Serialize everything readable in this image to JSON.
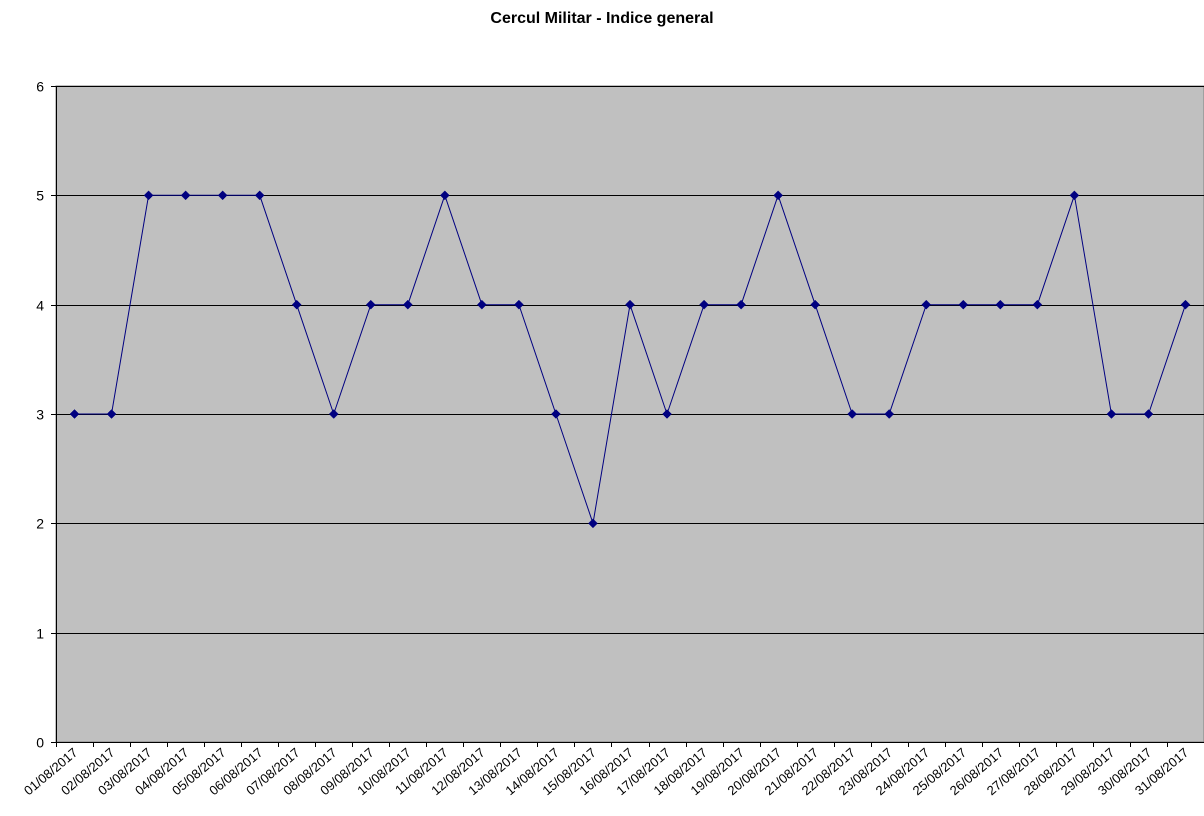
{
  "chart_data": {
    "type": "line",
    "title": "Cercul Militar - Indice general",
    "xlabel": "",
    "ylabel": "",
    "ylim": [
      0,
      6
    ],
    "yticks": [
      0,
      1,
      2,
      3,
      4,
      5,
      6
    ],
    "grid": true,
    "legend": "none",
    "categories": [
      "01/08/2017",
      "02/08/2017",
      "03/08/2017",
      "04/08/2017",
      "05/08/2017",
      "06/08/2017",
      "07/08/2017",
      "08/08/2017",
      "09/08/2017",
      "10/08/2017",
      "11/08/2017",
      "12/08/2017",
      "13/08/2017",
      "14/08/2017",
      "15/08/2017",
      "16/08/2017",
      "17/08/2017",
      "18/08/2017",
      "19/08/2017",
      "20/08/2017",
      "21/08/2017",
      "22/08/2017",
      "23/08/2017",
      "24/08/2017",
      "25/08/2017",
      "26/08/2017",
      "27/08/2017",
      "28/08/2017",
      "29/08/2017",
      "30/08/2017",
      "31/08/2017"
    ],
    "series": [
      {
        "values": [
          3,
          3,
          5,
          5,
          5,
          5,
          4,
          3,
          4,
          4,
          5,
          4,
          4,
          3,
          2,
          4,
          3,
          4,
          4,
          5,
          4,
          3,
          3,
          4,
          4,
          4,
          4,
          5,
          3,
          3,
          4
        ],
        "color": "#000080"
      }
    ],
    "colors": {
      "plot_background": "#c0c0c0",
      "gridline": "#000000",
      "line": "#000080",
      "marker": "#000080"
    }
  }
}
